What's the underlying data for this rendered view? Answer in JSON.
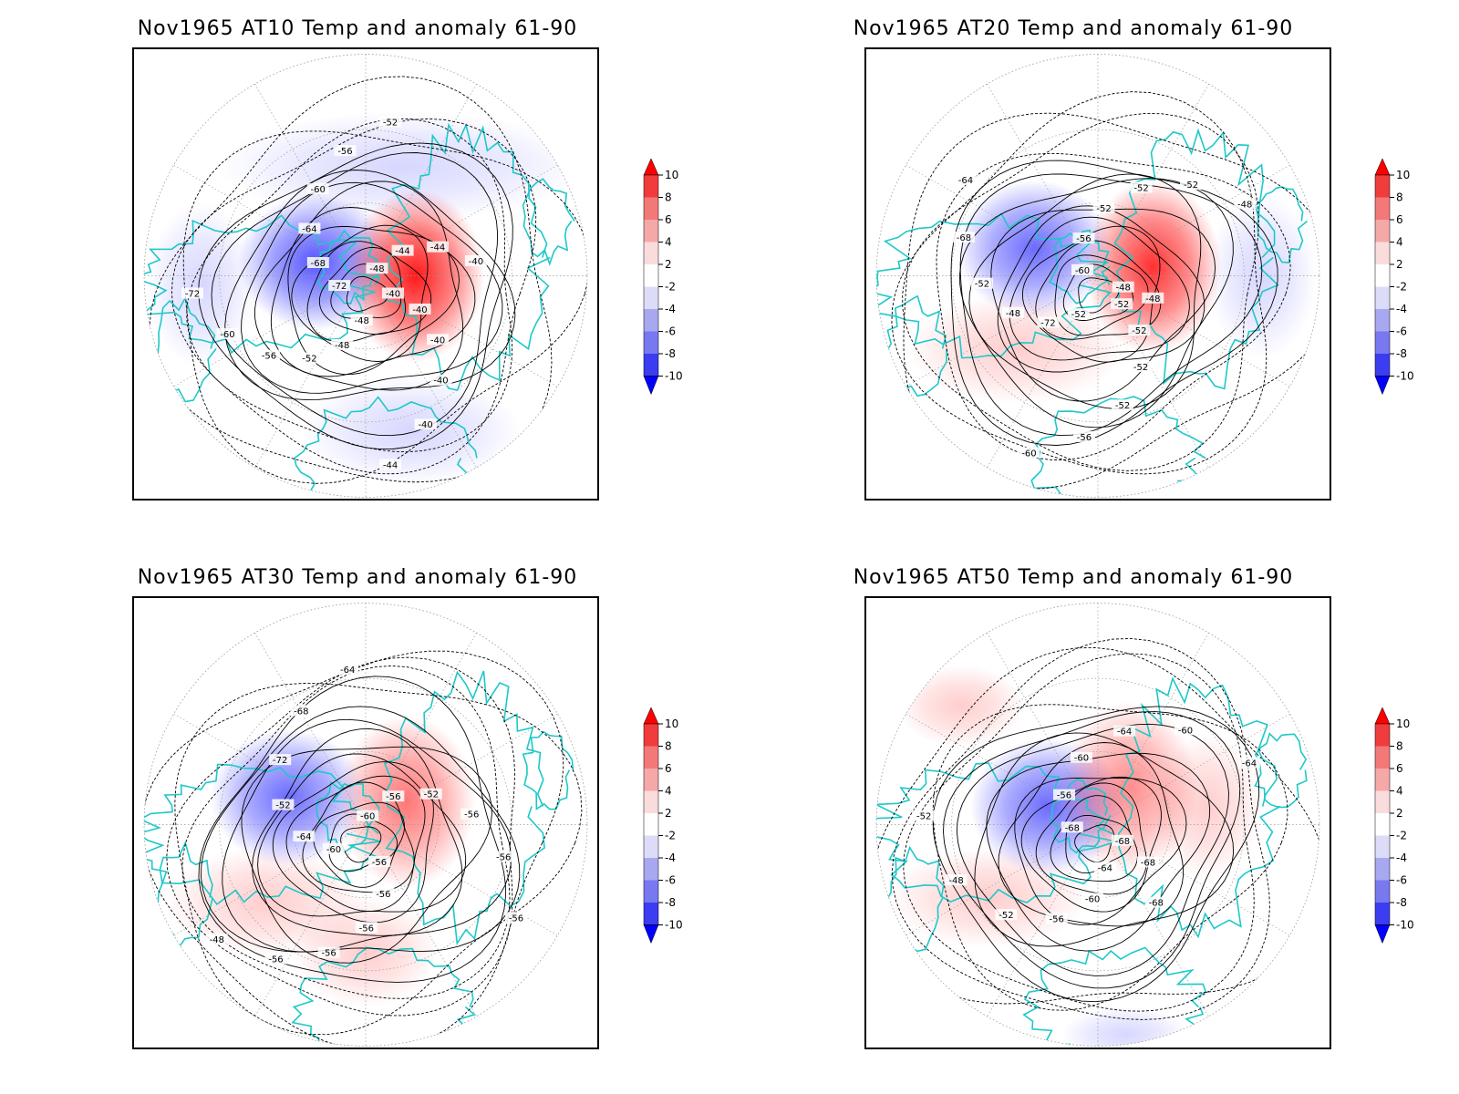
{
  "panels": [
    {
      "id": "at10",
      "title": "Nov1965 AT10 Temp and anomaly 61-90",
      "contour_labels": [
        "-40",
        "-40",
        "-40",
        "-40",
        "-40",
        "-44",
        "-48",
        "-48",
        "-52",
        "-56",
        "-60",
        "-72",
        "-72",
        "-68",
        "-64",
        "-60",
        "-56",
        "-52",
        "-48",
        "-44",
        "-44",
        "-40"
      ],
      "anomaly_warm_strength": 10,
      "anomaly_cold_strength": 8
    },
    {
      "id": "at20",
      "title": "Nov1965 AT20 Temp and anomaly 61-90",
      "contour_labels": [
        "-52",
        "-52",
        "-52",
        "-52",
        "-56",
        "-60",
        "-52",
        "-72",
        "-48",
        "-52",
        "-68",
        "-64",
        "-60",
        "-56",
        "-52",
        "-52",
        "-52",
        "-48",
        "-48",
        "-48"
      ],
      "anomaly_warm_strength": 9,
      "anomaly_cold_strength": 7
    },
    {
      "id": "at30",
      "title": "Nov1965 AT30 Temp and anomaly 61-90",
      "contour_labels": [
        "-56",
        "-56",
        "-56",
        "-56",
        "-56",
        "-48",
        "-60",
        "-64",
        "-52",
        "-72",
        "-68",
        "-64",
        "-60",
        "-56",
        "-52",
        "-56",
        "-56",
        "-56"
      ],
      "anomaly_warm_strength": 6,
      "anomaly_cold_strength": 7
    },
    {
      "id": "at50",
      "title": "Nov1965 AT50 Temp and anomaly 61-90",
      "contour_labels": [
        "-64",
        "-60",
        "-56",
        "-52",
        "-48",
        "-52",
        "-68",
        "-56",
        "-60",
        "-64",
        "-60",
        "-64",
        "-68",
        "-68",
        "-68"
      ],
      "anomaly_warm_strength": 5,
      "anomaly_cold_strength": 7
    }
  ],
  "colorbar": {
    "ticks": [
      "10",
      "8",
      "6",
      "4",
      "2",
      "-2",
      "-4",
      "-6",
      "-8",
      "-10"
    ],
    "colors": [
      "#ff0000",
      "#f03c3c",
      "#f37878",
      "#f5a8a8",
      "#fadcdc",
      "#ffffff",
      "#dcdcf8",
      "#a8a8f0",
      "#7878f0",
      "#3c3cf0",
      "#0000ff"
    ]
  },
  "colors": {
    "coastline": "#1ec8c8",
    "contour": "#000000",
    "grid": "#999999"
  }
}
